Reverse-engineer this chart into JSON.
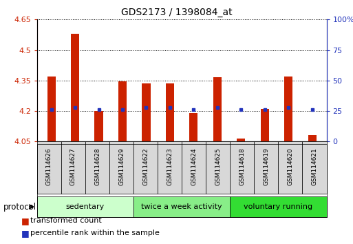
{
  "title": "GDS2173 / 1398084_at",
  "categories": [
    "GSM114626",
    "GSM114627",
    "GSM114628",
    "GSM114629",
    "GSM114622",
    "GSM114623",
    "GSM114624",
    "GSM114625",
    "GSM114618",
    "GSM114619",
    "GSM114620",
    "GSM114621"
  ],
  "bar_values": [
    4.37,
    4.58,
    4.2,
    4.345,
    4.335,
    4.335,
    4.19,
    4.365,
    4.065,
    4.21,
    4.37,
    4.08
  ],
  "blue_percentiles": [
    26,
    28,
    26,
    26,
    28,
    28,
    26,
    28,
    26,
    26,
    28,
    26
  ],
  "y_min": 4.05,
  "y_max": 4.65,
  "y_ticks": [
    4.05,
    4.2,
    4.35,
    4.5,
    4.65
  ],
  "y_tick_labels": [
    "4.05",
    "4.2",
    "4.35",
    "4.5",
    "4.65"
  ],
  "y2_ticks": [
    0,
    25,
    50,
    75,
    100
  ],
  "y2_tick_labels": [
    "0",
    "25",
    "50",
    "75",
    "100%"
  ],
  "bar_color": "#CC2200",
  "blue_color": "#2233BB",
  "groups": [
    {
      "label": "sedentary",
      "start": 0,
      "end": 4,
      "color": "#CCFFCC"
    },
    {
      "label": "twice a week activity",
      "start": 4,
      "end": 8,
      "color": "#88EE88"
    },
    {
      "label": "voluntary running",
      "start": 8,
      "end": 12,
      "color": "#33DD33"
    }
  ],
  "protocol_label": "protocol",
  "legend_items": [
    {
      "label": "transformed count",
      "color": "#CC2200"
    },
    {
      "label": "percentile rank within the sample",
      "color": "#2233BB"
    }
  ],
  "background_color": "#ffffff",
  "tick_label_color_left": "#CC2200",
  "tick_label_color_right": "#2233BB",
  "sample_box_color": "#D8D8D8",
  "bar_width": 0.35
}
